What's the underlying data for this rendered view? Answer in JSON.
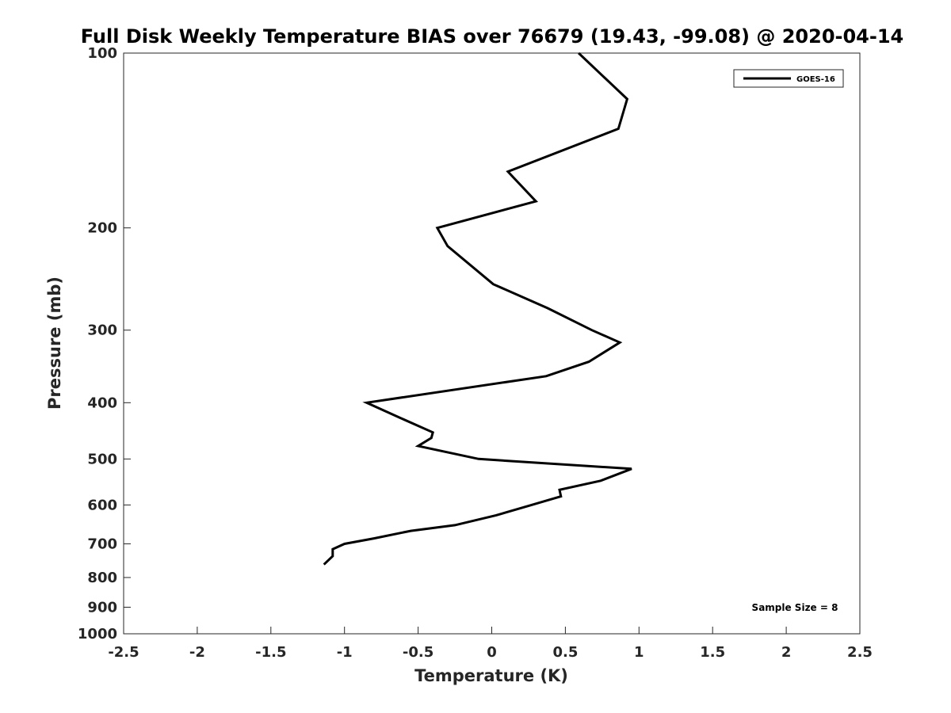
{
  "chart_data": {
    "type": "line",
    "title": "Full Disk Weekly Temperature BIAS over 76679 (19.43, -99.08) @ 2020-04-14",
    "xlabel": "Temperature (K)",
    "ylabel": "Pressure (mb)",
    "xlim": [
      -2.5,
      2.5
    ],
    "ylim": [
      100,
      1000
    ],
    "y_scale": "log",
    "y_reversed": true,
    "xticks": [
      -2.5,
      -2,
      -1.5,
      -1,
      -0.5,
      0,
      0.5,
      1,
      1.5,
      2,
      2.5
    ],
    "xtick_labels": [
      "-2.5",
      "-2",
      "-1.5",
      "-1",
      "-0.5",
      "0",
      "0.5",
      "1",
      "1.5",
      "2",
      "2.5"
    ],
    "yticks": [
      100,
      200,
      300,
      400,
      500,
      600,
      700,
      800,
      900,
      1000
    ],
    "ytick_labels": [
      "100",
      "200",
      "300",
      "400",
      "500",
      "600",
      "700",
      "800",
      "900",
      "1000"
    ],
    "grid": false,
    "legend_position": "top-right",
    "annotation": "Sample Size = 8",
    "series": [
      {
        "name": "GOES-16",
        "color": "#000000",
        "points": [
          {
            "x": 0.59,
            "p": 100
          },
          {
            "x": 0.92,
            "p": 120
          },
          {
            "x": 0.86,
            "p": 135
          },
          {
            "x": 0.11,
            "p": 160
          },
          {
            "x": 0.3,
            "p": 180
          },
          {
            "x": -0.37,
            "p": 200
          },
          {
            "x": -0.3,
            "p": 215
          },
          {
            "x": 0.01,
            "p": 250
          },
          {
            "x": 0.38,
            "p": 275
          },
          {
            "x": 0.68,
            "p": 300
          },
          {
            "x": 0.87,
            "p": 315
          },
          {
            "x": 0.66,
            "p": 340
          },
          {
            "x": 0.37,
            "p": 360
          },
          {
            "x": -0.85,
            "p": 400
          },
          {
            "x": -0.62,
            "p": 425
          },
          {
            "x": -0.4,
            "p": 450
          },
          {
            "x": -0.41,
            "p": 460
          },
          {
            "x": -0.5,
            "p": 475
          },
          {
            "x": -0.09,
            "p": 500
          },
          {
            "x": 0.95,
            "p": 520
          },
          {
            "x": 0.74,
            "p": 545
          },
          {
            "x": 0.46,
            "p": 565
          },
          {
            "x": 0.47,
            "p": 580
          },
          {
            "x": 0.27,
            "p": 600
          },
          {
            "x": 0.03,
            "p": 625
          },
          {
            "x": -0.25,
            "p": 650
          },
          {
            "x": -0.55,
            "p": 665
          },
          {
            "x": -0.8,
            "p": 685
          },
          {
            "x": -1.0,
            "p": 700
          },
          {
            "x": -1.08,
            "p": 715
          },
          {
            "x": -1.08,
            "p": 735
          },
          {
            "x": -1.14,
            "p": 760
          }
        ]
      }
    ]
  }
}
